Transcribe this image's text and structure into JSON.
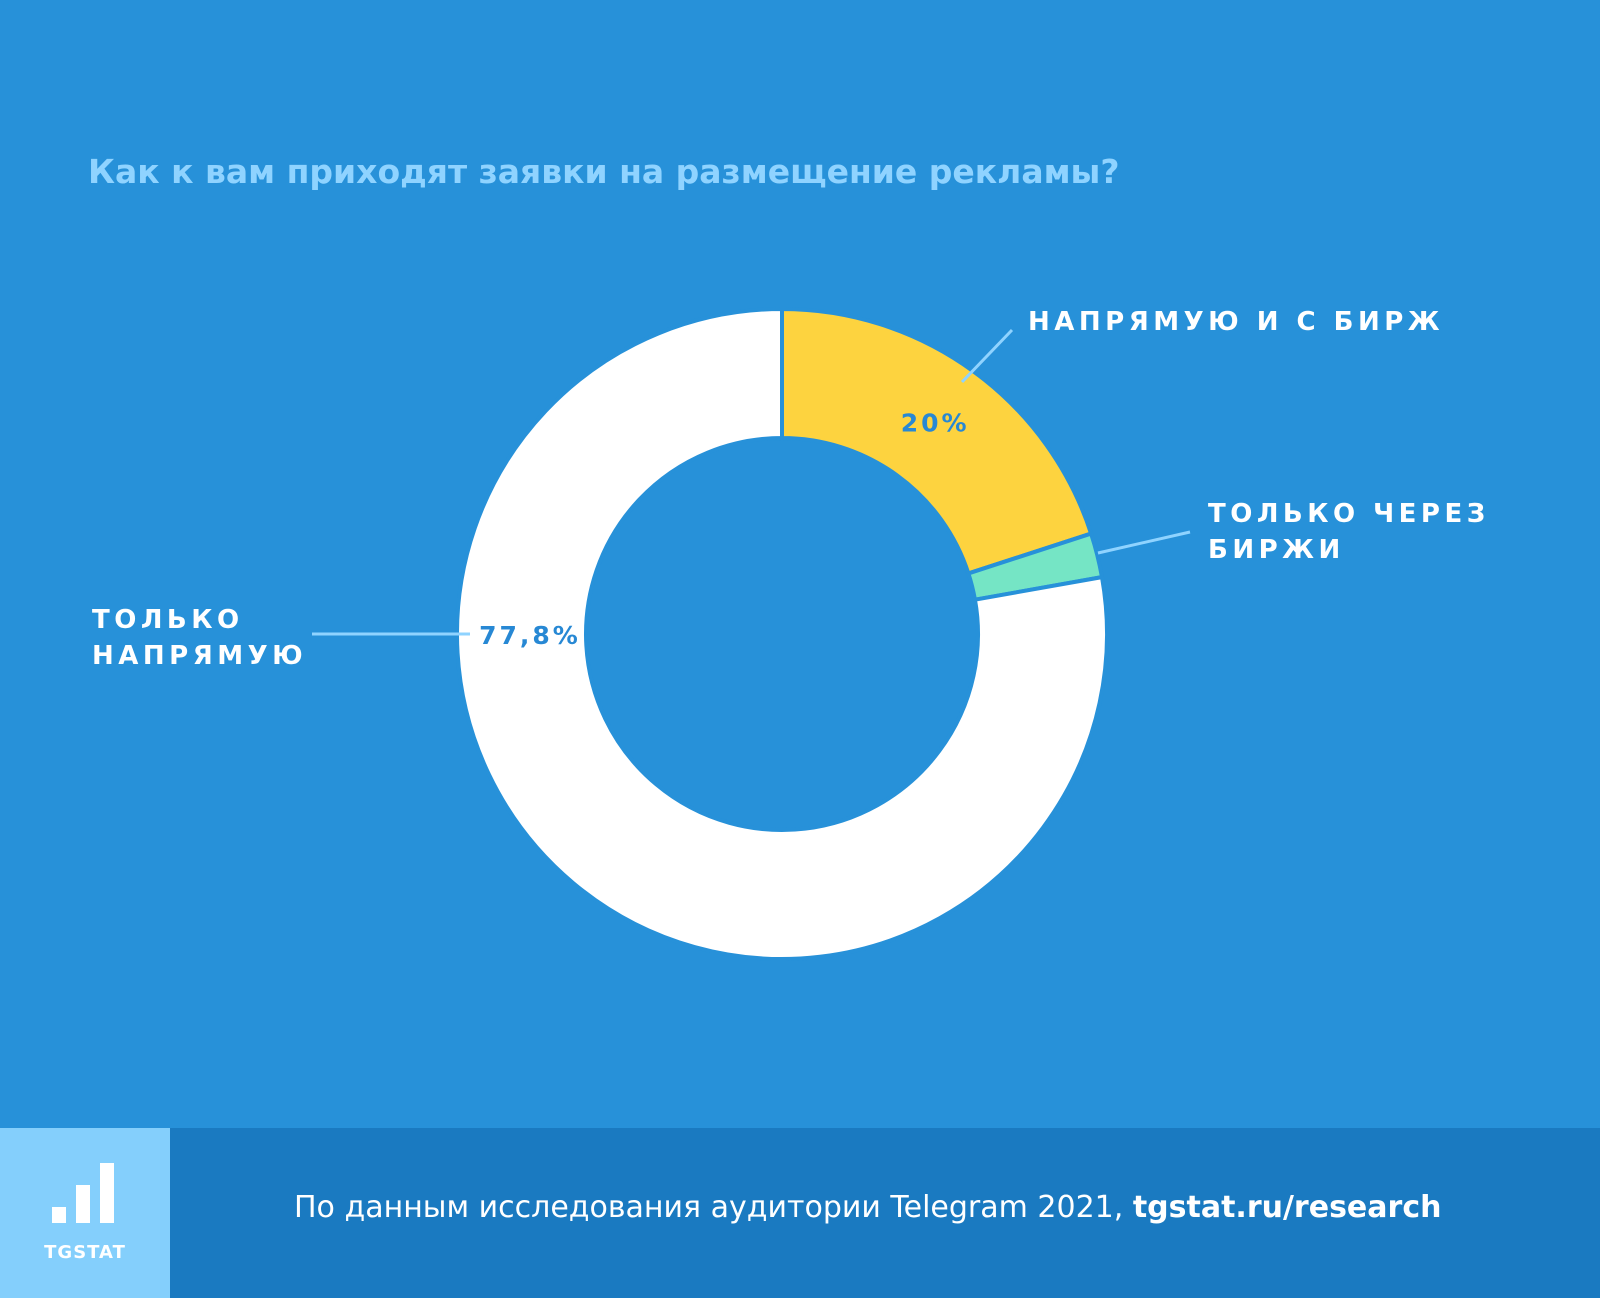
{
  "chart_data": {
    "type": "pie",
    "title": "Как к вам приходят заявки на размещение рекламы?",
    "series": [
      {
        "label_lines": [
          "НАПРЯМУЮ И С БИРЖ"
        ],
        "value": 20,
        "value_label": "20%",
        "color": "#fdd33f"
      },
      {
        "label_lines": [
          "ТОЛЬКО ЧЕРЕЗ",
          "БИРЖИ"
        ],
        "value": 2.2,
        "value_label": "",
        "color": "#75e5c5"
      },
      {
        "label_lines": [
          "ТОЛЬКО",
          "НАПРЯМУЮ"
        ],
        "value": 77.8,
        "value_label": "77,8%",
        "color": "#ffffff"
      }
    ]
  },
  "colors": {
    "background": "#2791d9",
    "footer": "#1a7ac1",
    "logo_box": "#84cffc",
    "title": "#8fd3ff",
    "leader_line": "#8fd3ff",
    "value_text": "#2788d4"
  },
  "footer": {
    "logo_text": "TGSTAT",
    "logo_icon": "bar-chart-icon",
    "source_text": "По данным исследования аудитории Telegram 2021, ",
    "source_link": "tgstat.ru/research"
  }
}
